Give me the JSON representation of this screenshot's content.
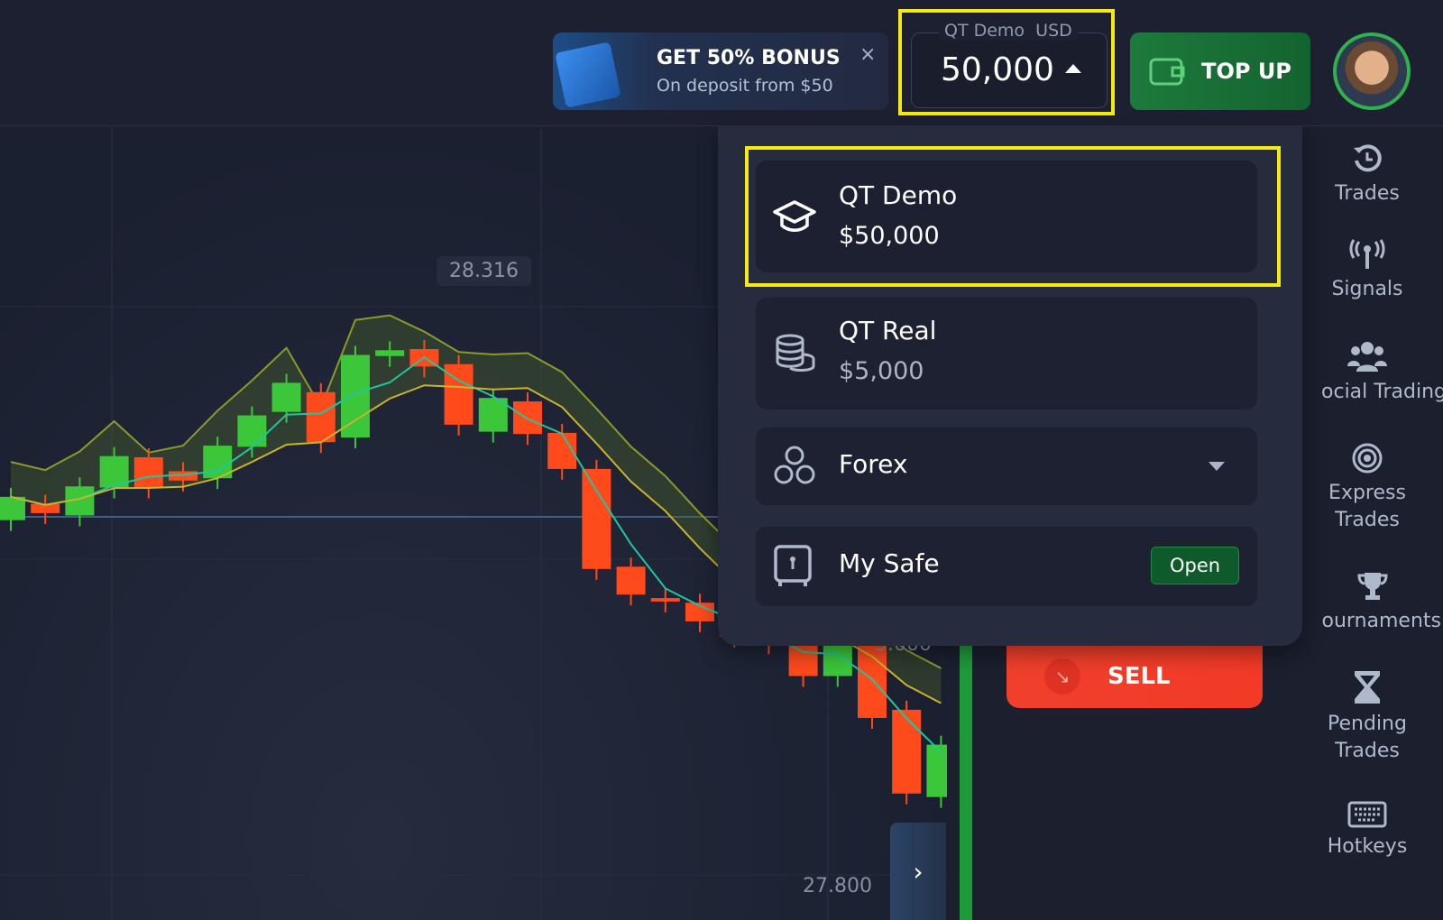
{
  "header": {
    "bonus": {
      "title": "GET 50% BONUS",
      "subtitle": "On deposit from $50",
      "close": "×"
    },
    "balance": {
      "account": "QT Demo",
      "currency": "USD",
      "amount": "50,000"
    },
    "topup_label": "TOP UP"
  },
  "dropdown": {
    "demo": {
      "name": "QT Demo",
      "amount": "$50,000"
    },
    "real": {
      "name": "QT Real",
      "amount": "$5,000"
    },
    "forex": {
      "name": "Forex"
    },
    "safe": {
      "name": "My Safe",
      "open_label": "Open"
    }
  },
  "trade_panel": {
    "sell_label": "SELL"
  },
  "sidebar": {
    "items": [
      {
        "label": "Trades",
        "icon": "history-icon"
      },
      {
        "label": "Signals",
        "icon": "signal-icon"
      },
      {
        "label": "ocial Trading",
        "icon": "users-icon"
      },
      {
        "label": "Express Trades",
        "icon": "target-icon"
      },
      {
        "label": "ournaments",
        "icon": "trophy-icon"
      },
      {
        "label": "Pending Trades",
        "icon": "hourglass-icon"
      },
      {
        "label": "Hotkeys",
        "icon": "keyboard-icon"
      }
    ]
  },
  "chart": {
    "price_tag": "28.316",
    "price_labels": [
      "3.000",
      "27.800"
    ],
    "colors": {
      "up": "#3cc63a",
      "down": "#ff4a1c",
      "ma_fast": "#1fc7a0",
      "ma_slow": "#c9b42a"
    },
    "candles": [
      [
        28.115,
        28.135
      ],
      [
        28.129,
        28.121
      ],
      [
        28.119,
        28.144
      ],
      [
        28.143,
        28.17
      ],
      [
        28.169,
        28.143
      ],
      [
        28.157,
        28.149
      ],
      [
        28.151,
        28.179
      ],
      [
        28.178,
        28.205
      ],
      [
        28.208,
        28.233
      ],
      [
        28.225,
        28.182
      ],
      [
        28.186,
        28.257
      ],
      [
        28.256,
        28.261
      ],
      [
        28.262,
        28.247
      ],
      [
        28.249,
        28.197
      ],
      [
        28.191,
        28.22
      ],
      [
        28.217,
        28.189
      ],
      [
        28.19,
        28.159
      ],
      [
        28.159,
        28.073
      ],
      [
        28.075,
        28.051
      ],
      [
        28.048,
        28.045
      ],
      [
        28.044,
        28.028
      ],
      [
        28.028,
        28.015
      ],
      [
        28.015,
        28.009
      ],
      [
        28.009,
        27.981
      ],
      [
        27.981,
        28.009
      ],
      [
        28.009,
        27.945
      ],
      [
        27.952,
        27.88
      ],
      [
        27.877,
        27.922
      ]
    ]
  }
}
